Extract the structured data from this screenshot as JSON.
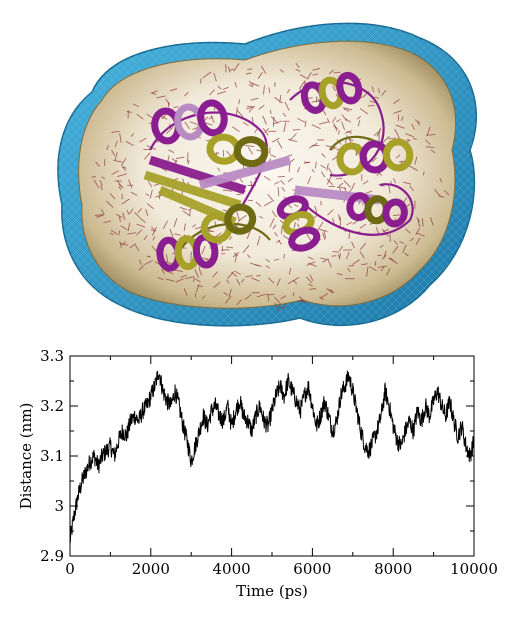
{
  "figure": {
    "upper_panel": {
      "image_kind": "molecular rendering",
      "description_colors": {
        "membrane": "#2f97c8",
        "membrane_dark": "#1c6f9b",
        "interior": "#c9b896",
        "interior_light": "#f4efe4",
        "solvent_specks": "#8d3b3b",
        "helix_purple": "#8a1d8f",
        "helix_purple_light": "#b98bc3",
        "helix_olive": "#a7a12a",
        "helix_olive_dark": "#6e6a13"
      }
    },
    "chart_data": {
      "type": "line",
      "xlabel": "Time (ps)",
      "ylabel": "Distance (nm)",
      "xlim": [
        0,
        10000
      ],
      "ylim": [
        2.9,
        3.3
      ],
      "xticks": [
        0,
        2000,
        4000,
        6000,
        8000,
        10000
      ],
      "yticks": [
        2.9,
        3.0,
        3.1,
        3.2,
        3.3
      ],
      "ytick_labels": [
        "2.9",
        "3",
        "3.1",
        "3.2",
        "3.3"
      ],
      "grid": false,
      "line_color": "#000000",
      "series": [
        {
          "x": [
            0,
            100,
            200,
            300,
            400,
            500,
            600,
            700,
            800,
            900,
            1000,
            1100,
            1200,
            1300,
            1400,
            1500,
            1600,
            1700,
            1800,
            1900,
            2000,
            2100,
            2200,
            2300,
            2400,
            2500,
            2600,
            2700,
            2800,
            2900,
            3000,
            3100,
            3200,
            3300,
            3400,
            3500,
            3600,
            3700,
            3800,
            3900,
            4000,
            4100,
            4200,
            4300,
            4400,
            4500,
            4600,
            4700,
            4800,
            4900,
            5000,
            5100,
            5200,
            5300,
            5400,
            5500,
            5600,
            5700,
            5800,
            5900,
            6000,
            6100,
            6200,
            6300,
            6400,
            6500,
            6600,
            6700,
            6800,
            6900,
            7000,
            7100,
            7200,
            7300,
            7400,
            7500,
            7600,
            7700,
            7800,
            7900,
            8000,
            8100,
            8200,
            8300,
            8400,
            8500,
            8600,
            8700,
            8800,
            8900,
            9000,
            9100,
            9200,
            9300,
            9400,
            9500,
            9600,
            9700,
            9800,
            9900,
            10000
          ],
          "values": [
            2.93,
            2.98,
            3.02,
            3.05,
            3.07,
            3.09,
            3.1,
            3.08,
            3.1,
            3.11,
            3.12,
            3.1,
            3.13,
            3.15,
            3.14,
            3.17,
            3.18,
            3.17,
            3.19,
            3.2,
            3.22,
            3.24,
            3.27,
            3.23,
            3.21,
            3.2,
            3.23,
            3.2,
            3.16,
            3.13,
            3.09,
            3.12,
            3.15,
            3.18,
            3.16,
            3.19,
            3.2,
            3.18,
            3.17,
            3.2,
            3.16,
            3.19,
            3.21,
            3.18,
            3.17,
            3.15,
            3.18,
            3.2,
            3.17,
            3.16,
            3.19,
            3.22,
            3.24,
            3.22,
            3.25,
            3.23,
            3.21,
            3.19,
            3.22,
            3.24,
            3.2,
            3.16,
            3.18,
            3.21,
            3.18,
            3.15,
            3.17,
            3.22,
            3.24,
            3.26,
            3.23,
            3.19,
            3.15,
            3.12,
            3.11,
            3.13,
            3.15,
            3.18,
            3.23,
            3.2,
            3.16,
            3.13,
            3.12,
            3.15,
            3.17,
            3.15,
            3.19,
            3.17,
            3.2,
            3.18,
            3.21,
            3.23,
            3.2,
            3.18,
            3.21,
            3.17,
            3.14,
            3.16,
            3.12,
            3.1,
            3.13
          ]
        }
      ]
    }
  }
}
